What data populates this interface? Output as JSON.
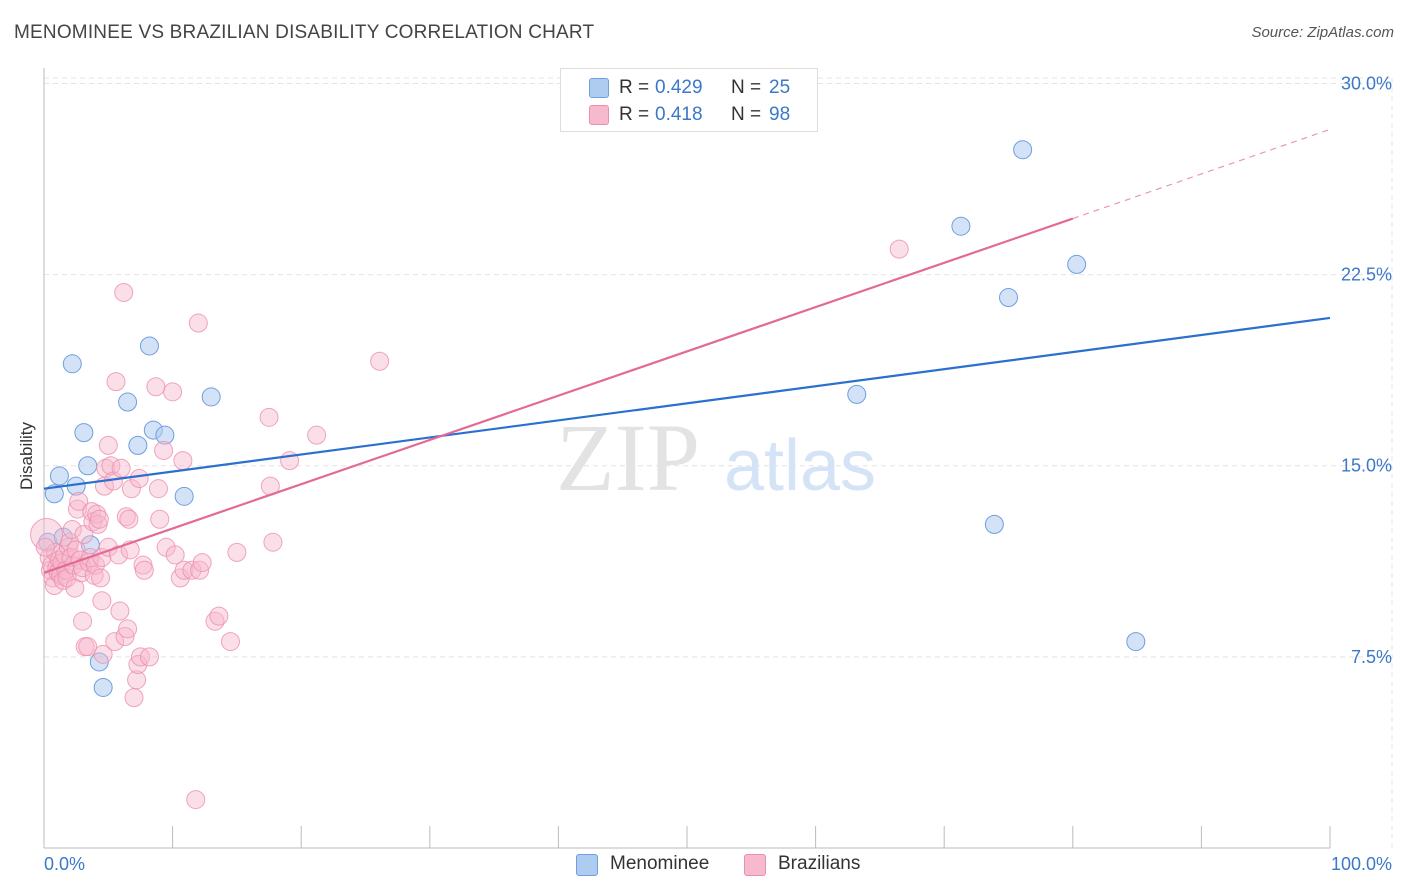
{
  "header": {
    "title": "MENOMINEE VS BRAZILIAN DISABILITY CORRELATION CHART",
    "source": "Source: ZipAtlas.com"
  },
  "legend": {
    "rows": [
      {
        "r_label": "R =",
        "r_value": "0.429",
        "n_label": "N =",
        "n_value": "25"
      },
      {
        "r_label": "R =",
        "r_value": "0.418",
        "n_label": "N =",
        "n_value": "98"
      }
    ]
  },
  "bottom_legend": {
    "items": [
      {
        "label": "Menominee"
      },
      {
        "label": "Brazilians"
      }
    ]
  },
  "watermark": {
    "zip": "ZIP",
    "atlas": "atlas"
  },
  "colors": {
    "menominee_fill": "#aecbf0",
    "menominee_stroke": "#6f9fde",
    "menominee_line": "#2b6fcf",
    "brazilian_fill": "#f7b9cd",
    "brazilian_stroke": "#ec8fae",
    "brazilian_line": "#e36a96",
    "tick_label": "#3b78c9",
    "grid": "#e4e4e4"
  },
  "chart_data": {
    "type": "scatter",
    "title": "MENOMINEE VS BRAZILIAN DISABILITY CORRELATION CHART",
    "xlabel": "",
    "ylabel": "Disability",
    "xlim": [
      0,
      100
    ],
    "ylim": [
      0,
      31
    ],
    "x_tick_labels": [
      "0.0%",
      "100.0%"
    ],
    "y_ticks": [
      7.5,
      15.0,
      22.5,
      30.0
    ],
    "y_tick_labels": [
      "7.5%",
      "15.0%",
      "22.5%",
      "30.0%"
    ],
    "grid": true,
    "legend_position": "top-center",
    "series": [
      {
        "name": "Menominee",
        "r": 0.429,
        "n": 25,
        "trend": {
          "x0": 0,
          "y0": 14.1,
          "x1": 100,
          "y1": 20.8
        },
        "points": [
          {
            "x": 0.3,
            "y": 12.0
          },
          {
            "x": 0.8,
            "y": 13.9
          },
          {
            "x": 1.2,
            "y": 14.6
          },
          {
            "x": 1.5,
            "y": 12.2
          },
          {
            "x": 2.2,
            "y": 19.0
          },
          {
            "x": 2.5,
            "y": 14.2
          },
          {
            "x": 3.1,
            "y": 16.3
          },
          {
            "x": 3.4,
            "y": 15.0
          },
          {
            "x": 3.6,
            "y": 11.9
          },
          {
            "x": 4.3,
            "y": 7.3
          },
          {
            "x": 4.6,
            "y": 6.3
          },
          {
            "x": 6.5,
            "y": 17.5
          },
          {
            "x": 7.3,
            "y": 15.8
          },
          {
            "x": 8.2,
            "y": 19.7
          },
          {
            "x": 8.5,
            "y": 16.4
          },
          {
            "x": 9.4,
            "y": 16.2
          },
          {
            "x": 10.9,
            "y": 13.8
          },
          {
            "x": 13.0,
            "y": 17.7
          },
          {
            "x": 63.2,
            "y": 17.8
          },
          {
            "x": 71.3,
            "y": 24.4
          },
          {
            "x": 73.9,
            "y": 12.7
          },
          {
            "x": 75.0,
            "y": 21.6
          },
          {
            "x": 76.1,
            "y": 27.4
          },
          {
            "x": 80.3,
            "y": 22.9
          },
          {
            "x": 84.9,
            "y": 8.1
          }
        ]
      },
      {
        "name": "Brazilians",
        "r": 0.418,
        "n": 98,
        "trend": {
          "x0": 0,
          "y0": 10.8,
          "x1": 80,
          "y1": 24.7
        },
        "trend_dashed": {
          "x0": 80,
          "y0": 24.7,
          "x1": 100,
          "y1": 28.2
        },
        "points": [
          {
            "x": 0.2,
            "y": 12.3
          },
          {
            "x": 0.4,
            "y": 11.4
          },
          {
            "x": 0.5,
            "y": 10.9
          },
          {
            "x": 0.6,
            "y": 11.1
          },
          {
            "x": 0.7,
            "y": 10.6
          },
          {
            "x": 0.8,
            "y": 10.3
          },
          {
            "x": 0.9,
            "y": 11.6
          },
          {
            "x": 1.0,
            "y": 11.0
          },
          {
            "x": 1.1,
            "y": 10.8
          },
          {
            "x": 1.2,
            "y": 11.3
          },
          {
            "x": 1.3,
            "y": 10.7
          },
          {
            "x": 1.4,
            "y": 11.2
          },
          {
            "x": 1.5,
            "y": 10.5
          },
          {
            "x": 1.6,
            "y": 11.5
          },
          {
            "x": 1.7,
            "y": 10.9
          },
          {
            "x": 1.8,
            "y": 10.6
          },
          {
            "x": 1.9,
            "y": 11.8
          },
          {
            "x": 2.0,
            "y": 12.0
          },
          {
            "x": 2.1,
            "y": 11.4
          },
          {
            "x": 2.2,
            "y": 12.5
          },
          {
            "x": 2.3,
            "y": 11.1
          },
          {
            "x": 2.4,
            "y": 10.2
          },
          {
            "x": 2.5,
            "y": 11.7
          },
          {
            "x": 2.6,
            "y": 13.3
          },
          {
            "x": 2.7,
            "y": 13.6
          },
          {
            "x": 2.8,
            "y": 11.3
          },
          {
            "x": 2.9,
            "y": 10.8
          },
          {
            "x": 3.0,
            "y": 11.0
          },
          {
            "x": 3.0,
            "y": 8.9
          },
          {
            "x": 3.1,
            "y": 12.3
          },
          {
            "x": 3.2,
            "y": 7.9
          },
          {
            "x": 3.4,
            "y": 7.9
          },
          {
            "x": 3.5,
            "y": 11.2
          },
          {
            "x": 3.6,
            "y": 11.4
          },
          {
            "x": 3.7,
            "y": 13.2
          },
          {
            "x": 3.8,
            "y": 12.8
          },
          {
            "x": 3.9,
            "y": 10.7
          },
          {
            "x": 4.0,
            "y": 11.1
          },
          {
            "x": 4.1,
            "y": 13.1
          },
          {
            "x": 4.2,
            "y": 12.7
          },
          {
            "x": 4.3,
            "y": 12.9
          },
          {
            "x": 4.4,
            "y": 10.6
          },
          {
            "x": 4.5,
            "y": 11.4
          },
          {
            "x": 4.5,
            "y": 9.7
          },
          {
            "x": 4.6,
            "y": 7.6
          },
          {
            "x": 4.7,
            "y": 14.2
          },
          {
            "x": 4.8,
            "y": 14.9
          },
          {
            "x": 5.0,
            "y": 15.8
          },
          {
            "x": 5.0,
            "y": 11.8
          },
          {
            "x": 5.2,
            "y": 15.0
          },
          {
            "x": 5.4,
            "y": 14.4
          },
          {
            "x": 5.5,
            "y": 8.1
          },
          {
            "x": 5.6,
            "y": 18.3
          },
          {
            "x": 5.8,
            "y": 11.5
          },
          {
            "x": 5.9,
            "y": 9.3
          },
          {
            "x": 6.0,
            "y": 14.9
          },
          {
            "x": 6.2,
            "y": 21.8
          },
          {
            "x": 6.3,
            "y": 8.3
          },
          {
            "x": 6.4,
            "y": 13.0
          },
          {
            "x": 6.5,
            "y": 8.6
          },
          {
            "x": 6.6,
            "y": 12.9
          },
          {
            "x": 6.7,
            "y": 11.7
          },
          {
            "x": 6.8,
            "y": 14.1
          },
          {
            "x": 7.0,
            "y": 5.9
          },
          {
            "x": 7.2,
            "y": 6.6
          },
          {
            "x": 7.3,
            "y": 7.2
          },
          {
            "x": 7.4,
            "y": 14.5
          },
          {
            "x": 7.5,
            "y": 7.5
          },
          {
            "x": 7.7,
            "y": 11.1
          },
          {
            "x": 7.8,
            "y": 10.9
          },
          {
            "x": 8.2,
            "y": 7.5
          },
          {
            "x": 8.7,
            "y": 18.1
          },
          {
            "x": 8.9,
            "y": 14.1
          },
          {
            "x": 9.0,
            "y": 12.9
          },
          {
            "x": 9.3,
            "y": 15.6
          },
          {
            "x": 9.5,
            "y": 11.8
          },
          {
            "x": 10.0,
            "y": 17.9
          },
          {
            "x": 10.2,
            "y": 11.5
          },
          {
            "x": 10.6,
            "y": 10.6
          },
          {
            "x": 10.8,
            "y": 15.2
          },
          {
            "x": 10.9,
            "y": 10.9
          },
          {
            "x": 11.5,
            "y": 10.9
          },
          {
            "x": 11.8,
            "y": 1.9
          },
          {
            "x": 12.0,
            "y": 20.6
          },
          {
            "x": 12.1,
            "y": 10.9
          },
          {
            "x": 12.3,
            "y": 11.2
          },
          {
            "x": 13.3,
            "y": 8.9
          },
          {
            "x": 13.6,
            "y": 9.1
          },
          {
            "x": 14.5,
            "y": 8.1
          },
          {
            "x": 15.0,
            "y": 11.6
          },
          {
            "x": 17.5,
            "y": 16.9
          },
          {
            "x": 17.6,
            "y": 14.2
          },
          {
            "x": 17.8,
            "y": 12.0
          },
          {
            "x": 19.1,
            "y": 15.2
          },
          {
            "x": 21.2,
            "y": 16.2
          },
          {
            "x": 26.1,
            "y": 19.1
          },
          {
            "x": 66.5,
            "y": 23.5
          },
          {
            "x": 0.1,
            "y": 11.8
          }
        ]
      }
    ]
  }
}
